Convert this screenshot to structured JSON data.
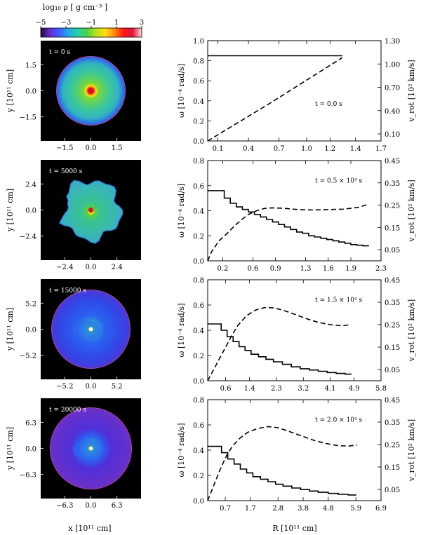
{
  "colorbar": {
    "label": "log₁₀ ρ [ g cm⁻³ ]",
    "ticks": [
      "−5",
      "−3",
      "−1",
      "1",
      "3"
    ],
    "range": [
      -5,
      3
    ],
    "colors": [
      "#1a0a3c",
      "#6a2ad0",
      "#3c5cff",
      "#22a8e8",
      "#22d0a8",
      "#48d248",
      "#b8e018",
      "#ffe010",
      "#ff8a10",
      "#ff1a10",
      "#e01040",
      "#ffd8d0"
    ]
  },
  "density_maps": {
    "ylabel": "y [10¹¹ cm]",
    "xlabel": "x [10¹¹ cm]",
    "panels": [
      {
        "time_label": "t = 0 s",
        "ticks": [
          "−1.5",
          "0.0",
          "1.5"
        ],
        "ticks_y": [
          "1.5",
          "0.0",
          "−1.5"
        ],
        "style": "initial"
      },
      {
        "time_label": "t = 5000 s",
        "ticks": [
          "−2.4",
          "0.0",
          "2.4"
        ],
        "ticks_y": [
          "2.4",
          "0.0",
          "−2.4"
        ],
        "style": "expanding"
      },
      {
        "time_label": "t = 15000 s",
        "ticks": [
          "−5.2",
          "0.0",
          "5.2"
        ],
        "ticks_y": [
          "5.2",
          "0.0",
          "−5.2"
        ],
        "style": "late"
      },
      {
        "time_label": "t = 20000 s",
        "ticks": [
          "−6.3",
          "0.0",
          "6.3"
        ],
        "ticks_y": [
          "6.3",
          "0.0",
          "−6.3"
        ],
        "style": "latest"
      }
    ]
  },
  "chart_data": [
    {
      "type": "line",
      "annotation": "t = 0.0 s",
      "xlim": [
        0,
        1.7
      ],
      "ylim": [
        0,
        1.0
      ],
      "y2lim": [
        0,
        1.3
      ],
      "xticks": [
        "0.1",
        "0.4",
        "0.7",
        "1.0",
        "1.2",
        "1.4",
        "1.7"
      ],
      "xtick_values": [
        0.1,
        0.4,
        0.7,
        0.97,
        1.2,
        1.45,
        1.7
      ],
      "yticks": [
        "0.0",
        "0.2",
        "0.4",
        "0.6",
        "0.8",
        "1.0"
      ],
      "y2ticks": [
        "0.10",
        "0.40",
        "0.70",
        "1.00",
        "1.30"
      ],
      "ylabel": "ω [10⁻⁴ rad/s]",
      "y2label": "v_rot [10² km/s]",
      "series": [
        {
          "name": "omega",
          "style": "solid",
          "axis": "left",
          "x": [
            0.0,
            1.32
          ],
          "y": [
            0.85,
            0.85
          ],
          "step": false
        },
        {
          "name": "v_rot",
          "style": "dashed",
          "axis": "right",
          "x": [
            0.0,
            0.3,
            0.6,
            0.9,
            1.2,
            1.32
          ],
          "y": [
            0.0,
            0.24,
            0.48,
            0.73,
            0.98,
            1.08
          ],
          "step": false
        }
      ]
    },
    {
      "type": "line",
      "annotation": "t = 0.5 × 10⁴ s",
      "xlim": [
        0,
        2.3
      ],
      "ylim": [
        0,
        0.8
      ],
      "y2lim": [
        0,
        0.45
      ],
      "xticks": [
        "0.2",
        "0.6",
        "0.9",
        "1.3",
        "1.6",
        "1.9",
        "2.3"
      ],
      "xtick_values": [
        0.2,
        0.6,
        0.9,
        1.3,
        1.6,
        1.9,
        2.3
      ],
      "yticks": [
        "0.0",
        "0.2",
        "0.4",
        "0.6",
        "0.8"
      ],
      "y2ticks": [
        "0.05",
        "0.15",
        "0.25",
        "0.35",
        "0.45"
      ],
      "ylabel": "ω [10⁻⁴ rad/s]",
      "y2label": "v_rot [10² km/s]",
      "series": [
        {
          "name": "omega",
          "style": "solid",
          "axis": "left",
          "step": true,
          "x": [
            0.0,
            0.22,
            0.3,
            0.38,
            0.46,
            0.54,
            0.62,
            0.7,
            0.78,
            0.86,
            0.94,
            1.02,
            1.1,
            1.18,
            1.26,
            1.34,
            1.42,
            1.5,
            1.58,
            1.66,
            1.74,
            1.82,
            1.9,
            1.98,
            2.06,
            2.14
          ],
          "y": [
            0.56,
            0.5,
            0.46,
            0.43,
            0.41,
            0.39,
            0.37,
            0.35,
            0.33,
            0.31,
            0.29,
            0.27,
            0.25,
            0.23,
            0.22,
            0.2,
            0.19,
            0.18,
            0.17,
            0.16,
            0.15,
            0.14,
            0.13,
            0.125,
            0.12,
            0.12
          ]
        },
        {
          "name": "v_rot",
          "style": "dashed",
          "axis": "right",
          "step": false,
          "x": [
            0.0,
            0.05,
            0.15,
            0.25,
            0.35,
            0.45,
            0.55,
            0.65,
            0.75,
            0.85,
            1.0,
            1.2,
            1.4,
            1.6,
            1.8,
            2.0,
            2.14
          ],
          "y": [
            0.0,
            0.04,
            0.09,
            0.12,
            0.155,
            0.185,
            0.21,
            0.225,
            0.235,
            0.238,
            0.236,
            0.23,
            0.228,
            0.23,
            0.232,
            0.24,
            0.255
          ]
        }
      ]
    },
    {
      "type": "line",
      "annotation": "t = 1.5 × 10⁴ s",
      "xlim": [
        0,
        5.8
      ],
      "ylim": [
        0,
        0.8
      ],
      "y2lim": [
        0,
        0.45
      ],
      "xticks": [
        "0.6",
        "1.4",
        "2.3",
        "3.2",
        "4.1",
        "4.9",
        "5.8"
      ],
      "xtick_values": [
        0.6,
        1.4,
        2.3,
        3.2,
        4.1,
        4.9,
        5.8
      ],
      "yticks": [
        "0.0",
        "0.2",
        "0.4",
        "0.6",
        "0.8"
      ],
      "y2ticks": [
        "0.05",
        "0.15",
        "0.25",
        "0.35",
        "0.45"
      ],
      "ylabel": "ω [10⁻⁴ rad/s]",
      "y2label": "v_rot [10² km/s]",
      "series": [
        {
          "name": "omega",
          "style": "solid",
          "axis": "left",
          "step": true,
          "x": [
            0.0,
            0.45,
            0.65,
            0.85,
            1.05,
            1.25,
            1.45,
            1.7,
            1.95,
            2.2,
            2.5,
            2.8,
            3.1,
            3.4,
            3.7,
            4.0,
            4.3,
            4.6,
            4.8
          ],
          "y": [
            0.45,
            0.4,
            0.35,
            0.31,
            0.27,
            0.24,
            0.21,
            0.19,
            0.17,
            0.15,
            0.13,
            0.11,
            0.095,
            0.085,
            0.075,
            0.065,
            0.058,
            0.052,
            0.05
          ]
        },
        {
          "name": "v_rot",
          "style": "dashed",
          "axis": "right",
          "step": false,
          "x": [
            0.0,
            0.2,
            0.4,
            0.6,
            0.8,
            1.0,
            1.3,
            1.6,
            1.9,
            2.2,
            2.5,
            2.9,
            3.3,
            3.7,
            4.1,
            4.5,
            4.8
          ],
          "y": [
            0.0,
            0.05,
            0.1,
            0.15,
            0.2,
            0.245,
            0.29,
            0.315,
            0.326,
            0.325,
            0.315,
            0.297,
            0.277,
            0.26,
            0.25,
            0.245,
            0.25
          ]
        }
      ]
    },
    {
      "type": "line",
      "annotation": "t = 2.0 × 10⁴ s",
      "xlim": [
        0,
        6.9
      ],
      "ylim": [
        0,
        0.8
      ],
      "y2lim": [
        0,
        0.45
      ],
      "xticks": [
        "0.7",
        "1.7",
        "2.8",
        "3.8",
        "4.8",
        "5.9",
        "6.9"
      ],
      "xtick_values": [
        0.7,
        1.7,
        2.8,
        3.8,
        4.8,
        5.9,
        6.9
      ],
      "yticks": [
        "0.0",
        "0.2",
        "0.4",
        "0.6",
        "0.8"
      ],
      "y2ticks": [
        "0.05",
        "0.15",
        "0.25",
        "0.35",
        "0.45"
      ],
      "ylabel": "ω [10⁻⁴ rad/s]",
      "y2label": "v_rot [10² km/s]",
      "xlabel": "R [10¹¹ cm]",
      "series": [
        {
          "name": "omega",
          "style": "solid",
          "axis": "left",
          "step": true,
          "x": [
            0.0,
            0.55,
            0.8,
            1.05,
            1.3,
            1.55,
            1.8,
            2.1,
            2.4,
            2.7,
            3.0,
            3.35,
            3.7,
            4.05,
            4.4,
            4.8,
            5.2,
            5.6,
            5.9
          ],
          "y": [
            0.43,
            0.38,
            0.33,
            0.29,
            0.25,
            0.22,
            0.19,
            0.17,
            0.15,
            0.13,
            0.115,
            0.1,
            0.088,
            0.076,
            0.066,
            0.057,
            0.05,
            0.045,
            0.042
          ]
        },
        {
          "name": "v_rot",
          "style": "dashed",
          "axis": "right",
          "step": false,
          "x": [
            0.0,
            0.25,
            0.5,
            0.75,
            1.0,
            1.3,
            1.6,
            2.0,
            2.4,
            2.8,
            3.2,
            3.7,
            4.2,
            4.7,
            5.2,
            5.6,
            5.95
          ],
          "y": [
            0.0,
            0.07,
            0.14,
            0.2,
            0.245,
            0.28,
            0.305,
            0.322,
            0.33,
            0.325,
            0.31,
            0.29,
            0.27,
            0.255,
            0.245,
            0.243,
            0.248
          ]
        }
      ]
    }
  ]
}
